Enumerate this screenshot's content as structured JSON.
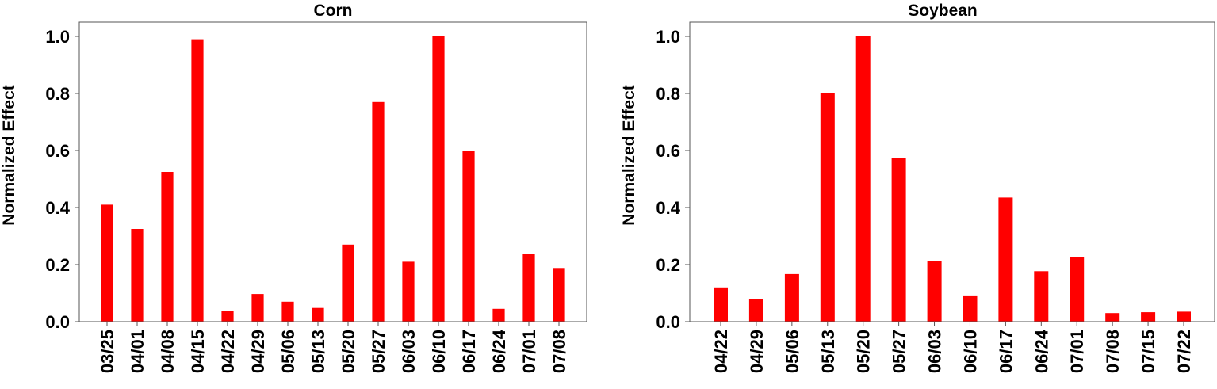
{
  "chart_data": [
    {
      "type": "bar",
      "title": "Corn",
      "ylabel": "Normalized Effect",
      "xlabel": "",
      "ylim": [
        0,
        1.05
      ],
      "yticks": [
        "0.0",
        "0.2",
        "0.4",
        "0.6",
        "0.8",
        "1.0"
      ],
      "color": "#ff0000",
      "categories": [
        "03/25",
        "04/01",
        "04/08",
        "04/15",
        "04/22",
        "04/29",
        "05/06",
        "05/13",
        "05/20",
        "05/27",
        "06/03",
        "06/10",
        "06/17",
        "06/24",
        "07/01",
        "07/08"
      ],
      "values": [
        0.41,
        0.325,
        0.525,
        0.99,
        0.038,
        0.097,
        0.07,
        0.048,
        0.27,
        0.77,
        0.21,
        1.0,
        0.598,
        0.045,
        0.238,
        0.188
      ]
    },
    {
      "type": "bar",
      "title": "Soybean",
      "ylabel": "Normalized Effect",
      "xlabel": "",
      "ylim": [
        0,
        1.05
      ],
      "yticks": [
        "0.0",
        "0.2",
        "0.4",
        "0.6",
        "0.8",
        "1.0"
      ],
      "color": "#ff0000",
      "categories": [
        "04/22",
        "04/29",
        "05/06",
        "05/13",
        "05/20",
        "05/27",
        "06/03",
        "06/10",
        "06/17",
        "06/24",
        "07/01",
        "07/08",
        "07/15",
        "07/22"
      ],
      "values": [
        0.12,
        0.08,
        0.167,
        0.8,
        1.0,
        0.575,
        0.212,
        0.092,
        0.435,
        0.177,
        0.227,
        0.03,
        0.033,
        0.035
      ]
    }
  ]
}
